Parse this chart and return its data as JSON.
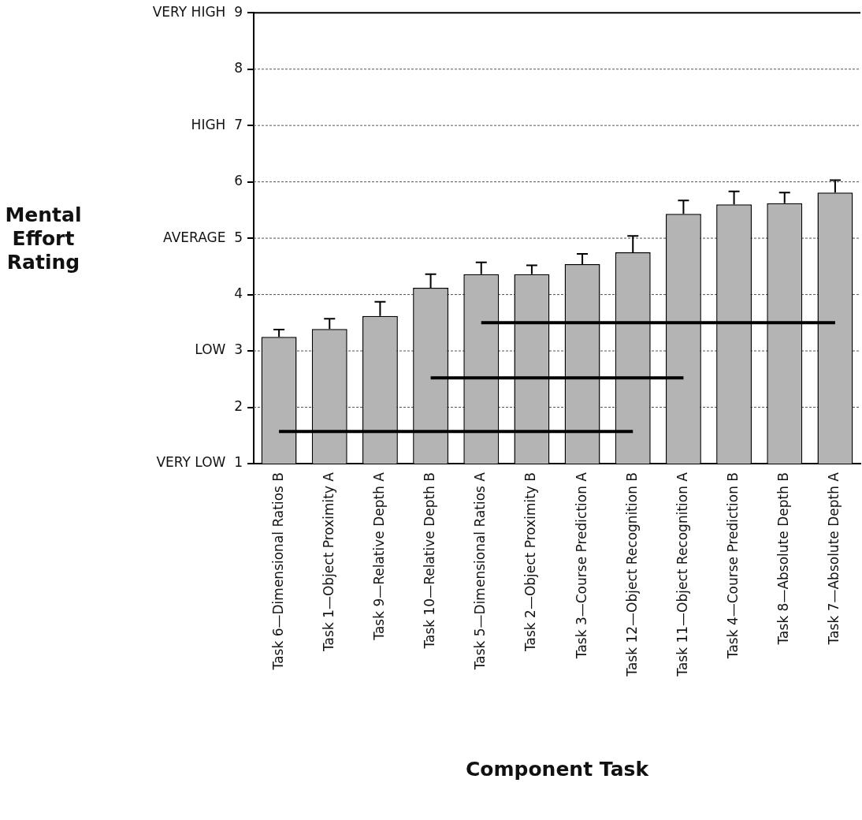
{
  "chart_data": {
    "type": "bar",
    "xlabel": "Component Task",
    "ylabel": "Mental\nEffort\nRating",
    "categories": [
      "Task 6—Dimensional Ratios B",
      "Task 1—Object Proximity A",
      "Task 9—Relative Depth A",
      "Task 10—Relative Depth B",
      "Task 5—Dimensional Ratios A",
      "Task 2—Object Proximity B",
      "Task 3—Course Prediction A",
      "Task 12—Object Recognition B",
      "Task 11—Object Recognition A",
      "Task 4—Course Prediction B",
      "Task 8—Absolute Depth B",
      "Task 7—Absolute Depth A"
    ],
    "series": [
      {
        "color": "#b4b4b4",
        "values": [
          3.25,
          3.39,
          3.62,
          4.12,
          4.36,
          4.36,
          4.54,
          4.75,
          5.43,
          5.6,
          5.62,
          5.81
        ],
        "errors": [
          [
            3.25,
            3.38
          ],
          [
            3.39,
            3.57
          ],
          [
            3.62,
            3.87
          ],
          [
            4.12,
            4.36
          ],
          [
            4.36,
            4.57
          ],
          [
            4.36,
            4.52
          ],
          [
            4.54,
            4.72
          ],
          [
            4.75,
            5.04
          ],
          [
            5.43,
            5.67
          ],
          [
            5.6,
            5.83
          ],
          [
            5.62,
            5.81
          ],
          [
            5.81,
            6.03
          ]
        ]
      },
      {
        "type": "line",
        "color": "#000000",
        "x": [
          "Task 6—Dimensional Ratios B",
          "Task 12—Object Recognition B"
        ],
        "values": [
          1.57,
          1.57
        ]
      },
      {
        "type": "line",
        "color": "#000000",
        "x": [
          "Task 10—Relative Depth B",
          "Task 11—Object Recognition A"
        ],
        "values": [
          2.52,
          2.52
        ]
      },
      {
        "type": "line",
        "color": "#000000",
        "x": [
          "Task 5—Dimensional Ratios A",
          "Task 7—Absolute Depth A"
        ],
        "values": [
          3.5,
          3.5
        ]
      }
    ],
    "ylim": [
      1,
      9
    ],
    "yticks": [
      {
        "value": 1,
        "label": "VERY LOW  1"
      },
      2,
      {
        "value": 3,
        "label": "LOW  3"
      },
      4,
      {
        "value": 5,
        "label": "AVERAGE  5"
      },
      6,
      {
        "value": 7,
        "label": "HIGH  7"
      },
      8,
      {
        "value": 9,
        "label": "VERY HIGH  9"
      }
    ],
    "grid": "y",
    "legend": false,
    "marker": "none"
  }
}
